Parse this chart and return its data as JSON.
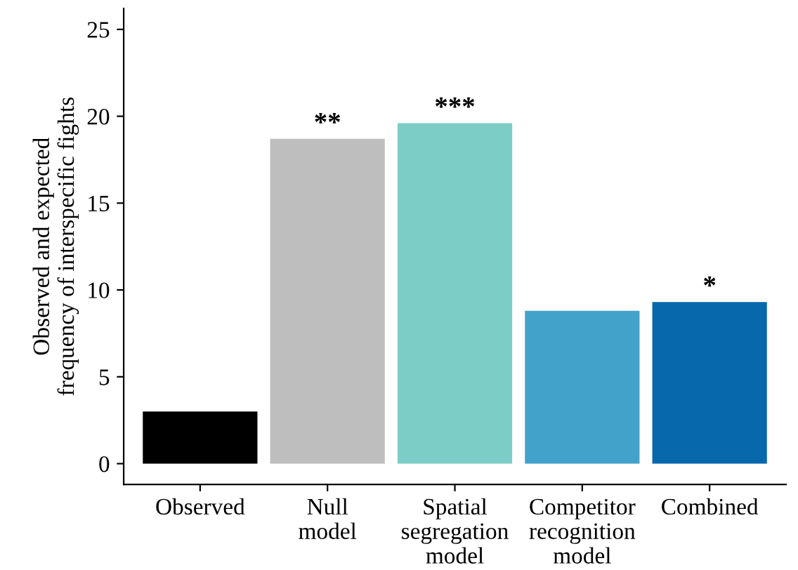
{
  "chart_data": {
    "type": "bar",
    "ylabel": "Observed and expected\nfrequency of interspecific fights",
    "categories": [
      "Observed",
      "Null\nmodel",
      "Spatial\nsegregation\nmodel",
      "Competitor\nrecognition\nmodel",
      "Combined"
    ],
    "values": [
      3,
      18.7,
      19.6,
      8.8,
      9.3
    ],
    "colors": [
      "#000000",
      "#bebebe",
      "#7ccdc6",
      "#43a2ca",
      "#0868ac"
    ],
    "ylim": [
      -1.2,
      26.2
    ],
    "yticks": [
      0,
      5,
      10,
      15,
      20,
      25
    ],
    "grid": false,
    "annotations": [
      {
        "text": "**",
        "x": "Null\nmodel",
        "y": 18.7
      },
      {
        "text": "***",
        "x": "Spatial\nsegregation\nmodel",
        "y": 19.6
      },
      {
        "text": "*",
        "x": "Combined",
        "y": 9.3
      }
    ]
  }
}
